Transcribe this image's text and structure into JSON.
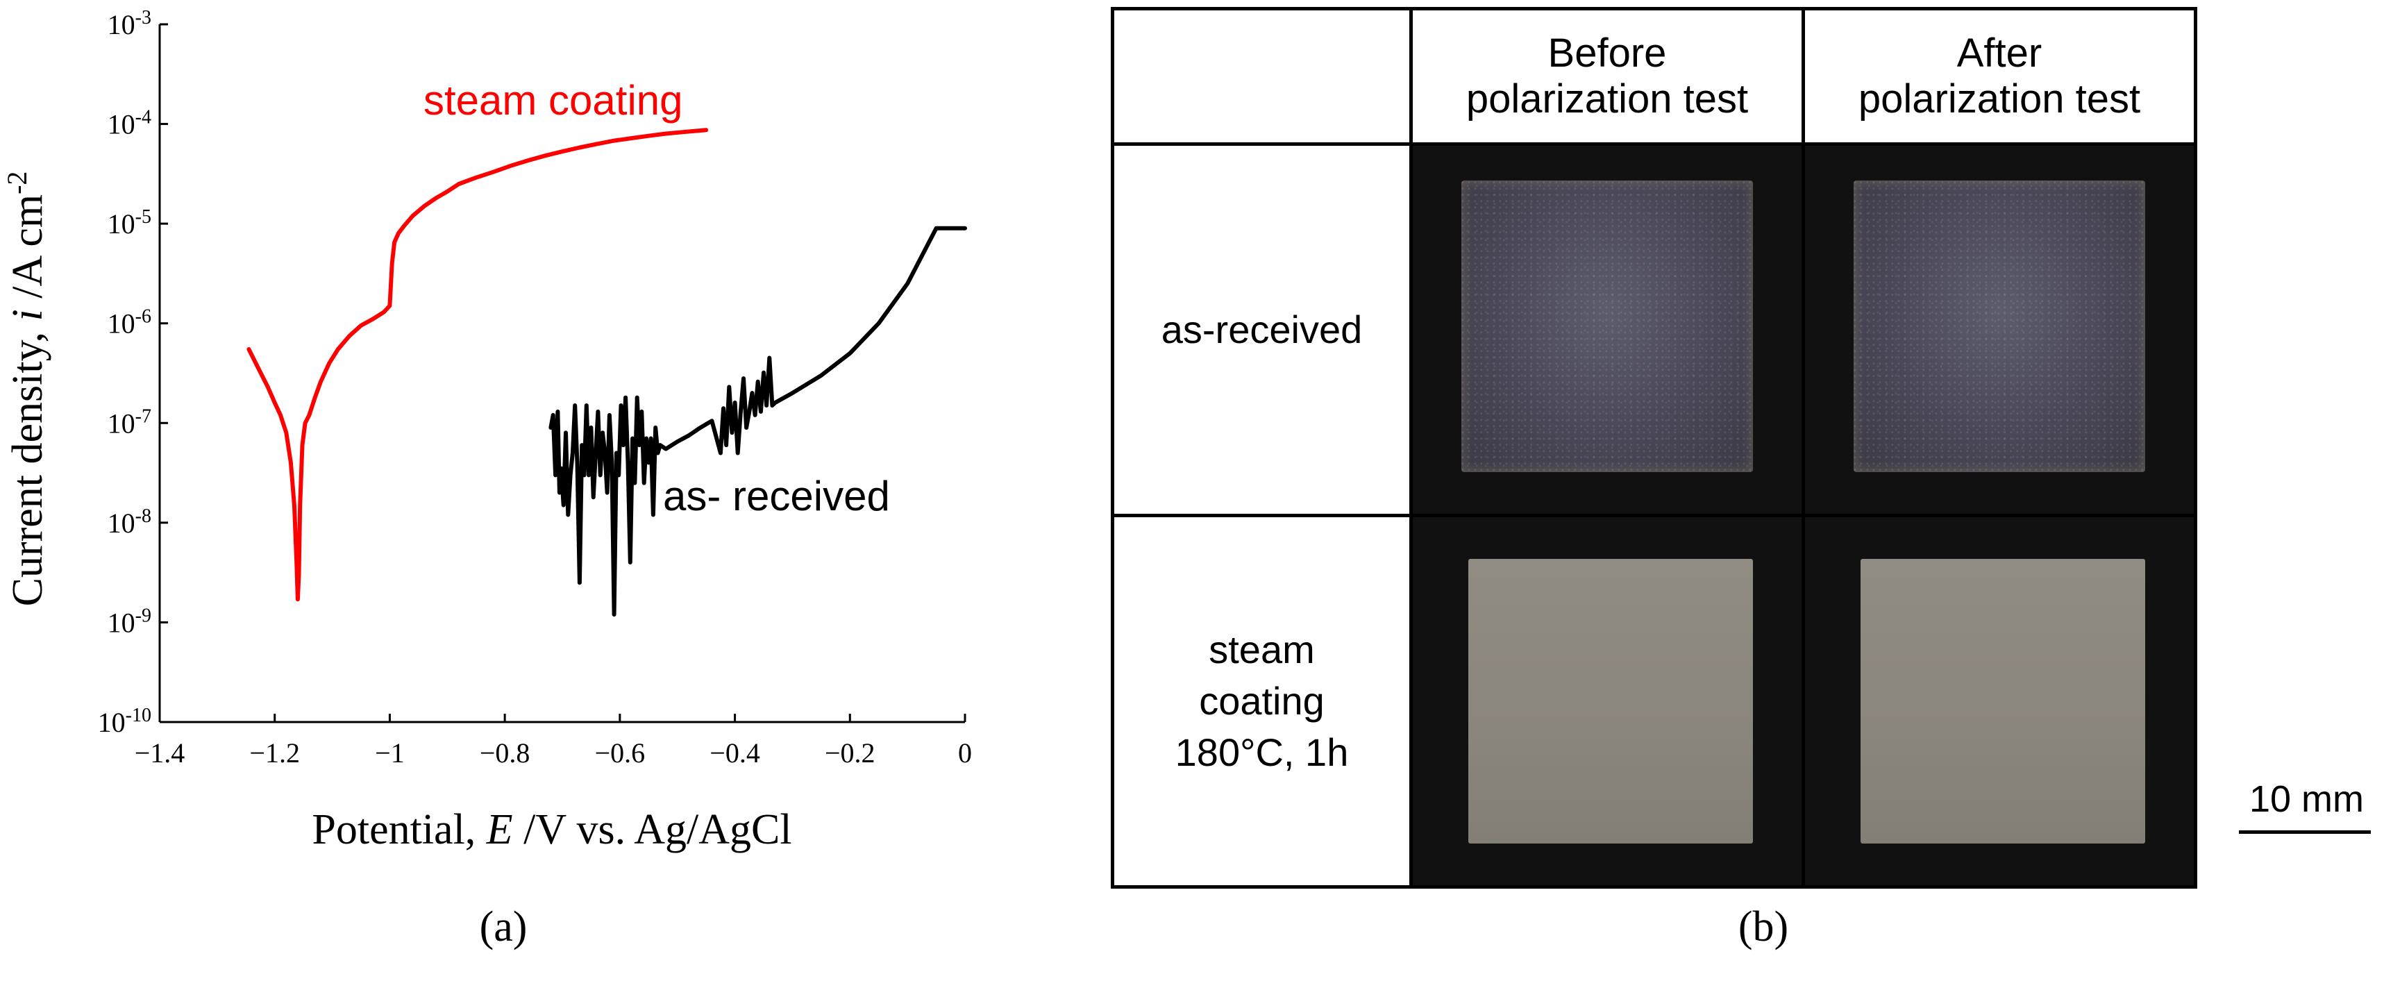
{
  "chart_data": {
    "type": "line",
    "xlabel_prefix": "Potential, ",
    "xlabel_var": "E",
    "xlabel_suffix": " /V vs. Ag/AgCl",
    "ylabel_prefix": "Current density, ",
    "ylabel_var": "i",
    "ylabel_suffix": " /A cm",
    "ylabel_exp": "-2",
    "xlim": [
      -1.4,
      0
    ],
    "ylim": [
      1e-10,
      0.001
    ],
    "yscale": "log",
    "grid": false,
    "x_ticks": [
      "−1.4",
      "−1.2",
      "−1",
      "−0.8",
      "−0.6",
      "−0.4",
      "−0.2",
      "0"
    ],
    "x_tick_values": [
      -1.4,
      -1.2,
      -1.0,
      -0.8,
      -0.6,
      -0.4,
      -0.2,
      0
    ],
    "y_tick_exponents": [
      "-10",
      "-9",
      "-8",
      "-7",
      "-6",
      "-5",
      "-4",
      "-3"
    ],
    "y_tick_values": [
      1e-10,
      1e-09,
      1e-08,
      1e-07,
      1e-06,
      1e-05,
      0.0001,
      0.001
    ],
    "series": [
      {
        "name": "steam coating",
        "color": "#ff0000",
        "x": [
          -1.245,
          -1.228,
          -1.212,
          -1.2,
          -1.19,
          -1.18,
          -1.172,
          -1.166,
          -1.162,
          -1.16,
          -1.158,
          -1.156,
          -1.152,
          -1.147,
          -1.14,
          -1.13,
          -1.12,
          -1.105,
          -1.09,
          -1.07,
          -1.05,
          -1.03,
          -1.01,
          -1.0,
          -0.996,
          -0.992,
          -0.985,
          -0.975,
          -0.96,
          -0.94,
          -0.92,
          -0.9,
          -0.88,
          -0.85,
          -0.82,
          -0.79,
          -0.76,
          -0.73,
          -0.7,
          -0.67,
          -0.64,
          -0.61,
          -0.58,
          -0.55,
          -0.52,
          -0.49,
          -0.46,
          -0.45
        ],
        "y": [
          5.5e-07,
          3.5e-07,
          2.3e-07,
          1.6e-07,
          1.2e-07,
          8e-08,
          4e-08,
          1.5e-08,
          4e-09,
          1.7e-09,
          3e-09,
          1.5e-08,
          6e-08,
          1e-07,
          1.2e-07,
          1.8e-07,
          2.6e-07,
          4e-07,
          5.5e-07,
          7.5e-07,
          9.5e-07,
          1.1e-06,
          1.3e-06,
          1.5e-06,
          4e-06,
          6.5e-06,
          8e-06,
          9.5e-06,
          1.2e-05,
          1.5e-05,
          1.8e-05,
          2.1e-05,
          2.5e-05,
          2.9e-05,
          3.3e-05,
          3.8e-05,
          4.3e-05,
          4.8e-05,
          5.3e-05,
          5.8e-05,
          6.3e-05,
          6.8e-05,
          7.2e-05,
          7.6e-05,
          8e-05,
          8.3e-05,
          8.6e-05,
          8.7e-05
        ]
      },
      {
        "name": "as- received",
        "color": "#000000",
        "x": [
          -0.72,
          -0.716,
          -0.712,
          -0.708,
          -0.705,
          -0.702,
          -0.698,
          -0.694,
          -0.69,
          -0.686,
          -0.682,
          -0.678,
          -0.674,
          -0.67,
          -0.666,
          -0.662,
          -0.658,
          -0.654,
          -0.65,
          -0.646,
          -0.642,
          -0.638,
          -0.634,
          -0.63,
          -0.626,
          -0.622,
          -0.618,
          -0.614,
          -0.61,
          -0.606,
          -0.602,
          -0.598,
          -0.594,
          -0.59,
          -0.586,
          -0.582,
          -0.578,
          -0.574,
          -0.57,
          -0.566,
          -0.562,
          -0.558,
          -0.554,
          -0.55,
          -0.546,
          -0.542,
          -0.538,
          -0.534,
          -0.53,
          -0.52,
          -0.5,
          -0.48,
          -0.46,
          -0.44,
          -0.425,
          -0.42,
          -0.415,
          -0.41,
          -0.405,
          -0.4,
          -0.395,
          -0.39,
          -0.385,
          -0.38,
          -0.375,
          -0.37,
          -0.365,
          -0.36,
          -0.355,
          -0.35,
          -0.345,
          -0.34,
          -0.335,
          -0.33,
          -0.3,
          -0.25,
          -0.2,
          -0.15,
          -0.1,
          -0.05,
          0.0
        ],
        "y": [
          9e-08,
          1.2e-07,
          3e-08,
          1.3e-07,
          2e-08,
          3.5e-08,
          1.5e-08,
          8e-08,
          1.2e-08,
          3e-08,
          5e-08,
          1.5e-07,
          4e-08,
          2.5e-09,
          6e-08,
          3e-08,
          1.5e-07,
          3e-08,
          9e-08,
          1.8e-08,
          5e-08,
          1.3e-07,
          3e-08,
          8e-08,
          5e-08,
          2e-08,
          1.2e-07,
          4e-08,
          1.2e-09,
          5e-08,
          3e-08,
          1.5e-07,
          6e-08,
          1.8e-07,
          4e-08,
          4e-09,
          7e-08,
          2.5e-08,
          1.8e-07,
          6e-08,
          1.3e-07,
          2.5e-08,
          7e-08,
          4e-08,
          7e-08,
          1.2e-08,
          9e-08,
          5e-08,
          6e-08,
          5.5e-08,
          6.5e-08,
          7.5e-08,
          9e-08,
          1.05e-07,
          5e-08,
          1.4e-07,
          6e-08,
          2.3e-07,
          8e-08,
          1.6e-07,
          5e-08,
          1.3e-07,
          2.8e-07,
          9e-08,
          1.3e-07,
          2e-07,
          1.2e-07,
          2.6e-07,
          1.3e-07,
          3.2e-07,
          1.5e-07,
          4.5e-07,
          1.5e-07,
          1.6e-07,
          2e-07,
          3e-07,
          5e-07,
          1e-06,
          2.5e-06,
          9e-06,
          9e-06
        ]
      }
    ],
    "annotations": [
      {
        "text": "steam coating",
        "color": "#ff0000"
      },
      {
        "text": "as- received",
        "color": "#000000"
      }
    ]
  },
  "panel_b": {
    "headers": [
      "",
      "Before\npolarization test",
      "After\npolarization test"
    ],
    "header_before_line1": "Before",
    "header_before_line2": "polarization test",
    "header_after_line1": "After",
    "header_after_line2": "polarization test",
    "rows": [
      {
        "label": "as-received",
        "photo_color": "#4a4858"
      },
      {
        "label": "steam\ncoating\n180°C, 1h",
        "photo_color": "#8b867d"
      }
    ],
    "scale_bar": "10 mm"
  },
  "panel_labels": {
    "a": "(a)",
    "b": "(b)"
  }
}
